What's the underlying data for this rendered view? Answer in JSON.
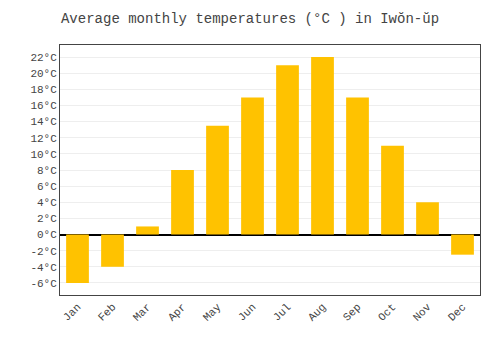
{
  "chart_data": {
    "type": "bar",
    "title": "Average monthly temperatures (°C ) in Iwŏn-ŭp",
    "categories": [
      "Jan",
      "Feb",
      "Mar",
      "Apr",
      "May",
      "Jun",
      "Jul",
      "Aug",
      "Sep",
      "Oct",
      "Nov",
      "Dec"
    ],
    "values": [
      -6,
      -4,
      1,
      8,
      13.5,
      17,
      21,
      22,
      17,
      11,
      4,
      -2.5
    ],
    "color": "#FFC200",
    "ylim": [
      -7.5,
      23.5
    ],
    "yticks": [
      {
        "value": -6,
        "label": "-6°C"
      },
      {
        "value": -4,
        "label": "-4°C"
      },
      {
        "value": -2,
        "label": "-2°C"
      },
      {
        "value": 0,
        "label": "0°C"
      },
      {
        "value": 2,
        "label": "2°C"
      },
      {
        "value": 4,
        "label": "4°C"
      },
      {
        "value": 6,
        "label": "6°C"
      },
      {
        "value": 8,
        "label": "8°C"
      },
      {
        "value": 10,
        "label": "10°C"
      },
      {
        "value": 12,
        "label": "12°C"
      },
      {
        "value": 14,
        "label": "14°C"
      },
      {
        "value": 16,
        "label": "16°C"
      },
      {
        "value": 18,
        "label": "18°C"
      },
      {
        "value": 20,
        "label": "20°C"
      },
      {
        "value": 22,
        "label": "22°C"
      }
    ],
    "grid": true
  }
}
